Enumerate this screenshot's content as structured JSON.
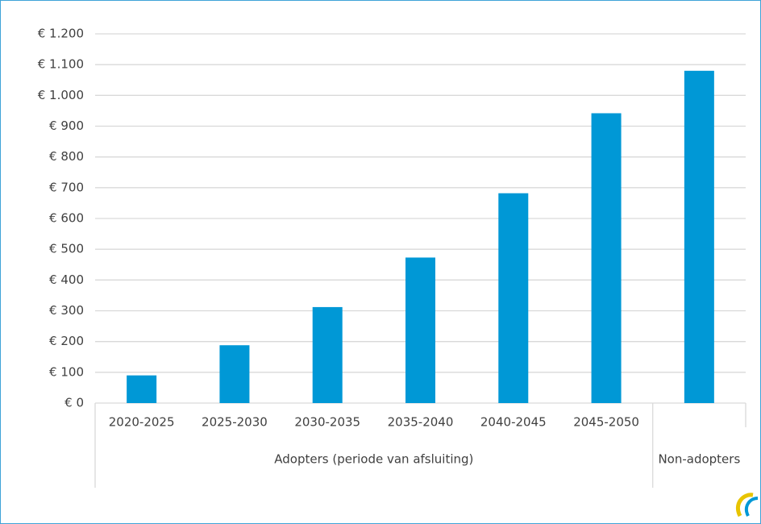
{
  "chart_data": {
    "type": "bar",
    "categories": [
      "2020-2025",
      "2025-2030",
      "2030-2035",
      "2035-2040",
      "2040-2045",
      "2045-2050",
      null
    ],
    "groups": [
      {
        "name": "Adopters (periode van afsluiting)",
        "count": 6
      },
      {
        "name": "Non-adopters",
        "count": 1
      }
    ],
    "values": [
      90,
      188,
      312,
      473,
      682,
      942,
      1080
    ],
    "color": "#0098d6",
    "ylim": [
      0,
      1200
    ],
    "yticks": [
      {
        "value": 0,
        "label": "€ 0"
      },
      {
        "value": 100,
        "label": "€ 100"
      },
      {
        "value": 200,
        "label": "€ 200"
      },
      {
        "value": 300,
        "label": "€ 300"
      },
      {
        "value": 400,
        "label": "€ 400"
      },
      {
        "value": 500,
        "label": "€ 500"
      },
      {
        "value": 600,
        "label": "€ 600"
      },
      {
        "value": 700,
        "label": "€ 700"
      },
      {
        "value": 800,
        "label": "€ 800"
      },
      {
        "value": 900,
        "label": "€ 900"
      },
      {
        "value": 1000,
        "label": "€ 1.000"
      },
      {
        "value": 1100,
        "label": "€ 1.100"
      },
      {
        "value": 1200,
        "label": "€ 1.200"
      }
    ],
    "grid": true
  }
}
